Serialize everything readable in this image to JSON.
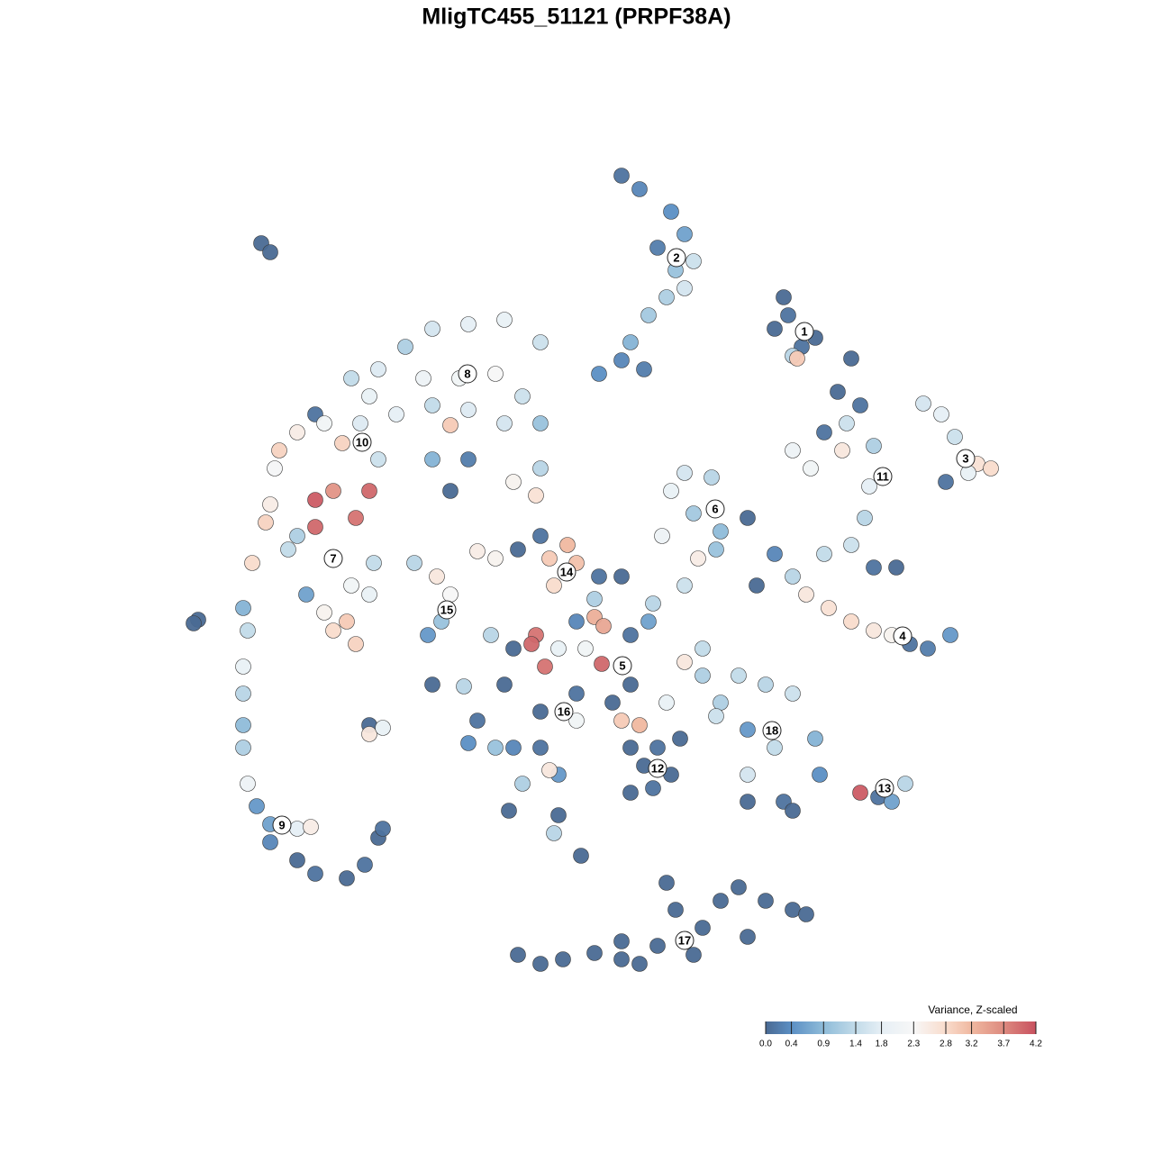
{
  "chart_data": {
    "type": "scatter",
    "title": "MligTC455_51121 (PRPF38A)",
    "xlim": [
      0,
      1280
    ],
    "ylim": [
      1280,
      0
    ],
    "x": [
      690,
      710,
      745,
      760,
      730,
      750,
      740,
      720,
      700,
      690,
      665,
      715,
      770,
      760,
      870,
      875,
      860,
      890,
      880,
      885,
      905,
      945,
      930,
      955,
      940,
      915,
      880,
      900,
      935,
      970,
      965,
      960,
      945,
      915,
      970,
      995,
      1025,
      1045,
      1060,
      1085,
      1100,
      1050,
      1075,
      760,
      790,
      745,
      770,
      800,
      735,
      830,
      775,
      795,
      860,
      880,
      895,
      920,
      945,
      970,
      990,
      1010,
      1030,
      1055,
      840,
      480,
      520,
      560,
      600,
      450,
      420,
      390,
      470,
      510,
      550,
      580,
      600,
      560,
      520,
      480,
      440,
      500,
      410,
      600,
      570,
      480,
      520,
      500,
      595,
      350,
      330,
      310,
      380,
      360,
      400,
      420,
      305,
      350,
      370,
      410,
      395,
      350,
      300,
      295,
      280,
      320,
      340,
      390,
      410,
      385,
      395,
      370,
      360,
      415,
      330,
      460,
      485,
      500,
      490,
      475,
      290,
      300,
      220,
      215,
      270,
      275,
      270,
      270,
      270,
      270,
      275,
      285,
      300,
      330,
      345,
      300,
      330,
      350,
      385,
      405,
      420,
      425,
      410,
      410,
      425,
      530,
      550,
      575,
      600,
      610,
      630,
      615,
      640,
      665,
      690,
      660,
      660,
      670,
      640,
      595,
      590,
      620,
      650,
      700,
      720,
      725,
      760,
      780,
      760,
      700,
      680,
      668,
      605,
      640,
      690,
      710,
      740,
      545,
      570,
      560,
      530,
      550,
      600,
      640,
      600,
      620,
      570,
      520,
      480,
      515,
      610,
      580,
      565,
      620,
      615,
      645,
      700,
      730,
      755,
      715,
      745,
      700,
      725,
      780,
      820,
      850,
      880,
      800,
      830,
      860,
      830,
      905,
      910,
      830,
      870,
      880,
      795,
      955,
      975,
      990,
      1005,
      575,
      600,
      625,
      660,
      690,
      710,
      730,
      750,
      780,
      800,
      830,
      850,
      880,
      895,
      740,
      820,
      770,
      690
    ],
    "y": [
      195,
      210,
      235,
      260,
      275,
      300,
      330,
      350,
      380,
      400,
      415,
      410,
      290,
      320,
      330,
      350,
      365,
      385,
      395,
      398,
      375,
      398,
      435,
      450,
      470,
      480,
      500,
      520,
      500,
      495,
      540,
      575,
      605,
      615,
      630,
      630,
      448,
      460,
      485,
      515,
      520,
      535,
      525,
      525,
      530,
      545,
      570,
      590,
      595,
      575,
      620,
      610,
      615,
      640,
      660,
      675,
      690,
      700,
      705,
      715,
      720,
      705,
      650,
      365,
      360,
      355,
      380,
      385,
      410,
      420,
      420,
      420,
      415,
      440,
      470,
      470,
      455,
      450,
      460,
      472,
      440,
      520,
      535,
      510,
      510,
      545,
      550,
      460,
      480,
      500,
      492,
      470,
      470,
      510,
      520,
      555,
      545,
      545,
      575,
      585,
      560,
      580,
      625,
      610,
      660,
      650,
      660,
      690,
      715,
      700,
      680,
      625,
      595,
      625,
      640,
      660,
      690,
      705,
      270,
      280,
      688,
      692,
      675,
      700,
      740,
      770,
      805,
      830,
      870,
      895,
      915,
      920,
      918,
      935,
      955,
      970,
      975,
      960,
      930,
      920,
      805,
      815,
      808,
      612,
      620,
      610,
      595,
      620,
      605,
      650,
      625,
      640,
      640,
      665,
      685,
      695,
      690,
      705,
      715,
      720,
      720,
      705,
      690,
      670,
      650,
      720,
      735,
      760,
      780,
      737,
      740,
      770,
      800,
      805,
      780,
      705,
      720,
      760,
      800,
      830,
      790,
      800,
      830,
      860,
      830,
      825,
      760,
      762,
      855,
      870,
      900,
      905,
      925,
      950,
      830,
      830,
      820,
      850,
      860,
      880,
      875,
      750,
      750,
      760,
      770,
      780,
      810,
      830,
      860,
      820,
      860,
      890,
      890,
      900,
      795,
      880,
      885,
      890,
      870,
      1060,
      1070,
      1065,
      1058,
      1065,
      1070,
      1050,
      1010,
      1030,
      1000,
      1040,
      1000,
      1010,
      1015,
      980,
      985,
      1060,
      1045
    ],
    "values": [
      0.1,
      0.3,
      0.4,
      0.6,
      0.2,
      1.0,
      1.2,
      1.1,
      0.8,
      0.3,
      0.4,
      0.2,
      1.5,
      1.6,
      0,
      0.1,
      0,
      0.1,
      1.3,
      3.0,
      0,
      0,
      0,
      0.1,
      1.5,
      0.1,
      2.0,
      2.1,
      2.6,
      1.2,
      1.8,
      1.3,
      1.5,
      1.4,
      0.1,
      0,
      1.6,
      1.8,
      1.5,
      2.7,
      2.8,
      0.1,
      1.9,
      1.6,
      1.3,
      1.9,
      1.1,
      0.9,
      2.0,
      0,
      2.5,
      1.0,
      0.3,
      1.3,
      2.6,
      2.7,
      2.8,
      2.6,
      2.4,
      0.1,
      0.2,
      0.5,
      0,
      1.6,
      1.8,
      1.9,
      1.5,
      1.2,
      1.7,
      1.4,
      2.0,
      2.1,
      2.3,
      1.5,
      1.0,
      1.6,
      1.7,
      1.4,
      1.8,
      3.0,
      1.9,
      1.3,
      2.4,
      0.8,
      0.2,
      0,
      2.7,
      0.1,
      2.5,
      2.9,
      2.9,
      2.1,
      1.7,
      1.5,
      2.2,
      4.1,
      3.6,
      4.0,
      3.9,
      4.0,
      2.5,
      2.9,
      2.8,
      1.4,
      0.6,
      2.1,
      1.9,
      3.0,
      2.9,
      2.8,
      2.4,
      1.4,
      1.2,
      1.3,
      2.6,
      2.3,
      1.0,
      0.5,
      0,
      0,
      0,
      0,
      0.8,
      1.4,
      1.9,
      1.3,
      0.9,
      1.2,
      2.0,
      0.5,
      0.6,
      1.8,
      2.5,
      0.3,
      0,
      0.1,
      0,
      0.1,
      0,
      0.1,
      0,
      2.6,
      1.9,
      2.5,
      2.4,
      0,
      0.1,
      3.0,
      3.2,
      2.8,
      3.1,
      0.1,
      0,
      1.2,
      3.3,
      3.4,
      0.3,
      3.9,
      4.0,
      1.9,
      2.1,
      0.1,
      0.6,
      1.3,
      1.5,
      1.4,
      2.6,
      0,
      0,
      4.0,
      3.9,
      0.1,
      3.0,
      3.2,
      1.9,
      1.3,
      0,
      0,
      0.1,
      1.0,
      0,
      2.1,
      0.1,
      0.5,
      0.3,
      0.4,
      0,
      1.3,
      2.6,
      1.2,
      0,
      0,
      1.3,
      0,
      0,
      0.1,
      0,
      0,
      0,
      0,
      0.1,
      1.2,
      1.4,
      1.3,
      1.5,
      1.2,
      0.5,
      1.4,
      1.6,
      0.8,
      0.4,
      0,
      0.1,
      0,
      1.5,
      4.1,
      0.1,
      0.6,
      1.3,
      0,
      0,
      0,
      0,
      0,
      0,
      0,
      0,
      0,
      0,
      0,
      0,
      0,
      0,
      0,
      0,
      0,
      0
    ],
    "labels": [
      {
        "text": "1",
        "x": 893,
        "y": 368
      },
      {
        "text": "2",
        "x": 751,
        "y": 286
      },
      {
        "text": "3",
        "x": 1072,
        "y": 509
      },
      {
        "text": "4",
        "x": 1002,
        "y": 706
      },
      {
        "text": "5",
        "x": 691,
        "y": 739
      },
      {
        "text": "6",
        "x": 794,
        "y": 565
      },
      {
        "text": "7",
        "x": 370,
        "y": 620
      },
      {
        "text": "8",
        "x": 519,
        "y": 415
      },
      {
        "text": "9",
        "x": 313,
        "y": 916
      },
      {
        "text": "10",
        "x": 402,
        "y": 491
      },
      {
        "text": "11",
        "x": 980,
        "y": 529
      },
      {
        "text": "12",
        "x": 730,
        "y": 853
      },
      {
        "text": "13",
        "x": 982,
        "y": 875
      },
      {
        "text": "14",
        "x": 629,
        "y": 635
      },
      {
        "text": "15",
        "x": 496,
        "y": 677
      },
      {
        "text": "16",
        "x": 626,
        "y": 790
      },
      {
        "text": "17",
        "x": 760,
        "y": 1044
      },
      {
        "text": "18",
        "x": 857,
        "y": 811
      }
    ],
    "colorbar": {
      "title": "Variance, Z-scaled",
      "clim": [
        0,
        4.2
      ],
      "ticks": [
        {
          "value": 0,
          "label": "0.0"
        },
        0.4,
        0.9,
        1.4,
        1.8,
        2.3,
        2.8,
        3.2,
        3.7,
        4.2
      ],
      "colors": [
        "#4a6a93",
        "#5b8fc4",
        "#8fbcd9",
        "#c2dbe9",
        "#e6eff5",
        "#f7f7f7",
        "#f9dccc",
        "#f0b8a0",
        "#dd8a7f",
        "#c8515f"
      ]
    }
  }
}
